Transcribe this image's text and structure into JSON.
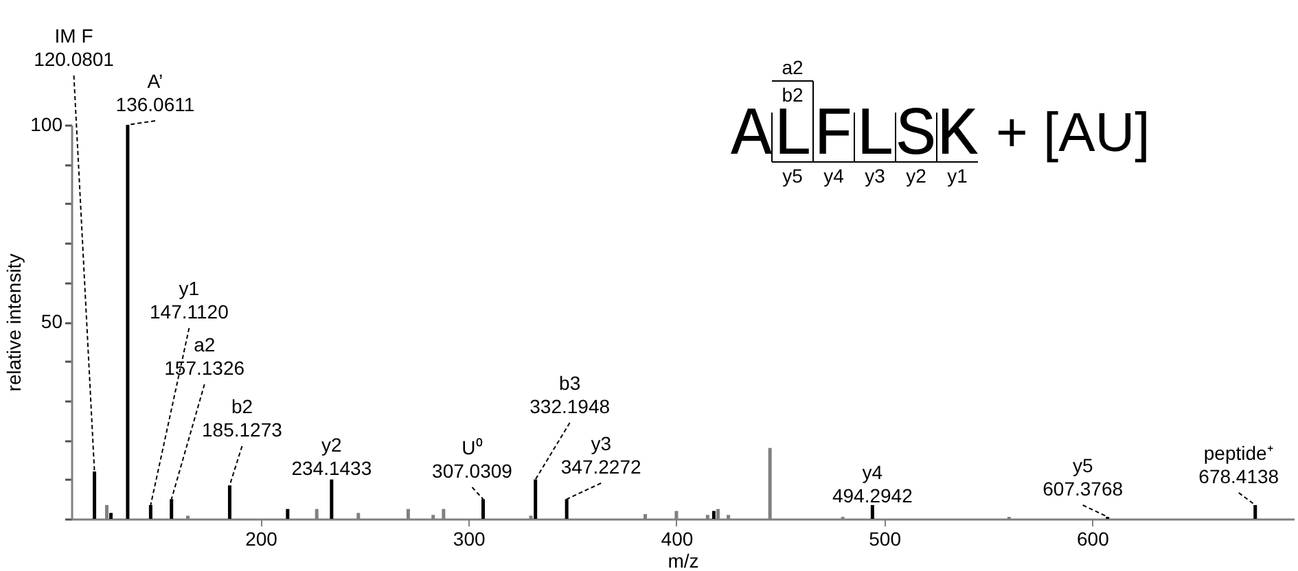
{
  "chart_data": {
    "type": "bar",
    "xlabel": "m/z",
    "ylabel": "relative intensity",
    "xlim": [
      109,
      697
    ],
    "ylim": [
      0,
      100
    ],
    "xticks": [
      200,
      300,
      400,
      500,
      600
    ],
    "yticks": [
      {
        "value": 0,
        "label": null
      },
      {
        "value": 10,
        "label": null
      },
      {
        "value": 20,
        "label": null
      },
      {
        "value": 30,
        "label": null
      },
      {
        "value": 40,
        "label": null
      },
      50,
      {
        "value": 60,
        "label": null
      },
      {
        "value": 70,
        "label": null
      },
      {
        "value": 80,
        "label": null
      },
      {
        "value": 90,
        "label": null
      },
      100
    ],
    "series": [
      {
        "color": "#000000",
        "x": [
          120.0801,
          128,
          136.0611,
          147.112,
          157.1326,
          185.1273,
          213,
          234.1433,
          307.0309,
          332.1948,
          347.2272,
          418,
          494.2942,
          607.3768,
          678.4138
        ],
        "values": [
          12,
          1.5,
          100,
          3.5,
          5,
          8.5,
          2.5,
          10,
          5,
          10,
          5,
          2,
          3.5,
          0.5,
          3.5
        ]
      },
      {
        "color": "#808080",
        "x": [
          126,
          165,
          227,
          247,
          271,
          283,
          288,
          330,
          385,
          400,
          415,
          420,
          425,
          445,
          480,
          560
        ],
        "values": [
          3.5,
          0.8,
          2.5,
          1.5,
          2.5,
          1,
          2.5,
          0.8,
          1.2,
          2,
          1,
          2.5,
          1,
          18,
          0.5,
          0.5
        ]
      }
    ],
    "annotations": [
      {
        "text": "IM F\n120.0801",
        "x": 120.0801,
        "y": 12
      },
      {
        "text": "A’\n136.0611",
        "x": 136.0611,
        "y": 100
      },
      {
        "text": "y1\n147.1120",
        "x": 147.112,
        "y": 3.5
      },
      {
        "text": "a2\n157.1326",
        "x": 157.1326,
        "y": 5
      },
      {
        "text": "b2\n185.1273",
        "x": 185.1273,
        "y": 8.5
      },
      {
        "text": "y2\n234.1433",
        "x": 234.1433,
        "y": 10
      },
      {
        "text": "U⁰\n307.0309",
        "x": 307.0309,
        "y": 5
      },
      {
        "text": "b3\n332.1948",
        "x": 332.1948,
        "y": 10
      },
      {
        "text": "y3\n347.2272",
        "x": 347.2272,
        "y": 5
      },
      {
        "text": "y4\n494.2942",
        "x": 494.2942,
        "y": 3.5
      },
      {
        "text": "y5\n607.3768",
        "x": 607.3768,
        "y": 0.5
      },
      {
        "text": "peptide⁺\n678.4138",
        "x": 678.4138,
        "y": 3.5
      },
      "ALFLSK",
      "+ [AU]",
      "a2",
      "b2",
      "y5",
      "y4",
      "y3",
      "y2",
      "y1"
    ]
  }
}
